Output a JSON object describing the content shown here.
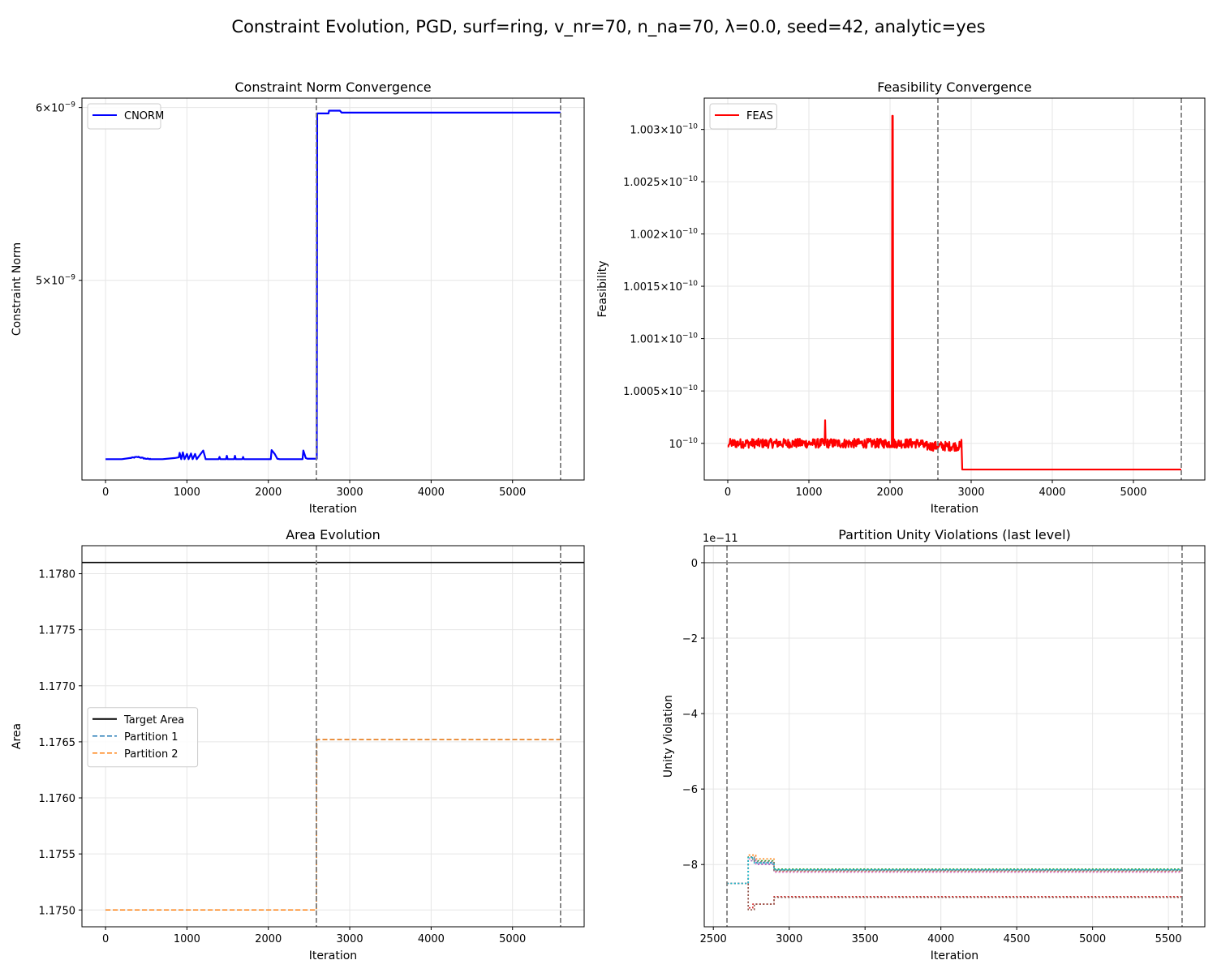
{
  "figure_title": "Constraint Evolution, PGD, surf=ring, v_nr=70, n_na=70, λ=0.0, seed=42, analytic=yes",
  "chart_data": [
    {
      "id": "cnorm",
      "type": "line",
      "title": "Constraint Norm Convergence",
      "xlabel": "Iteration",
      "ylabel": "Constraint Norm",
      "xlim": [
        -290,
        5880
      ],
      "ylim": [
        4.05e-09,
        6.06e-09
      ],
      "yscale": "log",
      "xticks": [
        0,
        1000,
        2000,
        3000,
        4000,
        5000
      ],
      "xtick_labels": [
        "0",
        "1000",
        "2000",
        "3000",
        "4000",
        "5000"
      ],
      "yticks": [
        5e-09,
        6e-09
      ],
      "ytick_labels": [
        {
          "mant": "5",
          "exp": "−9"
        },
        {
          "mant": "6",
          "exp": "−9"
        }
      ],
      "vlines": [
        2590,
        5590
      ],
      "legend": {
        "position": "upper-left",
        "entries": [
          {
            "label": "CNORM",
            "color": "#0000ff",
            "style": "solid"
          }
        ]
      },
      "series": [
        {
          "name": "CNORM",
          "color": "#0000ff",
          "width": 2.2,
          "points": [
            [
              0,
              4.14e-09
            ],
            [
              200,
              4.14e-09
            ],
            [
              300,
              4.145e-09
            ],
            [
              400,
              4.15e-09
            ],
            [
              480,
              4.143e-09
            ],
            [
              550,
              4.14e-09
            ],
            [
              700,
              4.14e-09
            ],
            [
              850,
              4.145e-09
            ],
            [
              900,
              4.148e-09
            ],
            [
              910,
              4.168e-09
            ],
            [
              930,
              4.14e-09
            ],
            [
              950,
              4.17e-09
            ],
            [
              970,
              4.14e-09
            ],
            [
              1000,
              4.163e-09
            ],
            [
              1020,
              4.14e-09
            ],
            [
              1050,
              4.165e-09
            ],
            [
              1070,
              4.14e-09
            ],
            [
              1100,
              4.163e-09
            ],
            [
              1120,
              4.14e-09
            ],
            [
              1200,
              4.178e-09
            ],
            [
              1230,
              4.14e-09
            ],
            [
              1390,
              4.14e-09
            ],
            [
              1400,
              4.15e-09
            ],
            [
              1410,
              4.14e-09
            ],
            [
              1480,
              4.14e-09
            ],
            [
              1490,
              4.155e-09
            ],
            [
              1500,
              4.14e-09
            ],
            [
              1580,
              4.14e-09
            ],
            [
              1590,
              4.155e-09
            ],
            [
              1600,
              4.14e-09
            ],
            [
              1680,
              4.14e-09
            ],
            [
              1690,
              4.15e-09
            ],
            [
              1700,
              4.14e-09
            ],
            [
              2030,
              4.14e-09
            ],
            [
              2040,
              4.18e-09
            ],
            [
              2080,
              4.162e-09
            ],
            [
              2110,
              4.142e-09
            ],
            [
              2140,
              4.14e-09
            ],
            [
              2420,
              4.14e-09
            ],
            [
              2430,
              4.178e-09
            ],
            [
              2460,
              4.145e-09
            ],
            [
              2480,
              4.142e-09
            ],
            [
              2595,
              4.142e-09
            ],
            [
              2600,
              5.963e-09
            ],
            [
              2740,
              5.963e-09
            ],
            [
              2745,
              5.98e-09
            ],
            [
              2880,
              5.98e-09
            ],
            [
              2900,
              5.968e-09
            ],
            [
              5590,
              5.968e-09
            ]
          ]
        }
      ]
    },
    {
      "id": "feas",
      "type": "line",
      "title": "Feasibility Convergence",
      "xlabel": "Iteration",
      "ylabel": "Feasibility",
      "xlim": [
        -290,
        5880
      ],
      "ylim": [
        9.9965e-11,
        1.0033e-10
      ],
      "yscale": "log",
      "xticks": [
        0,
        1000,
        2000,
        3000,
        4000,
        5000
      ],
      "xtick_labels": [
        "0",
        "1000",
        "2000",
        "3000",
        "4000",
        "5000"
      ],
      "yticks": [
        1e-10,
        1.0005e-10,
        1.001e-10,
        1.0015e-10,
        1.002e-10,
        1.0025e-10,
        1.003e-10
      ],
      "ytick_labels": [
        {
          "mant": "",
          "exp": "−10"
        },
        {
          "mant": "1.0005",
          "exp": "−10"
        },
        {
          "mant": "1.001",
          "exp": "−10"
        },
        {
          "mant": "1.0015",
          "exp": "−10"
        },
        {
          "mant": "1.002",
          "exp": "−10"
        },
        {
          "mant": "1.0025",
          "exp": "−10"
        },
        {
          "mant": "1.003",
          "exp": "−10"
        }
      ],
      "vlines": [
        2590,
        5590
      ],
      "legend": {
        "position": "upper-left",
        "entries": [
          {
            "label": "FEAS",
            "color": "#ff0000",
            "style": "solid"
          }
        ]
      },
      "series": [
        {
          "name": "FEAS",
          "color": "#ff0000",
          "width": 2.2,
          "noise_range": [
            0,
            2880
          ],
          "noise_amp": 4.5e-15,
          "base": 1e-10,
          "points": [
            [
              0,
              1e-10
            ],
            [
              1195,
              1e-10
            ],
            [
              1200,
              1.00022e-10
            ],
            [
              1210,
              1e-10
            ],
            [
              2020,
              1e-10
            ],
            [
              2030,
              1.00313e-10
            ],
            [
              2040,
              1e-10
            ],
            [
              2880,
              1e-10
            ],
            [
              2890,
              9.9975e-11
            ],
            [
              5590,
              9.9975e-11
            ]
          ]
        }
      ]
    },
    {
      "id": "area",
      "type": "line",
      "title": "Area Evolution",
      "xlabel": "Iteration",
      "ylabel": "Area",
      "xlim": [
        -290,
        5880
      ],
      "ylim": [
        1.17485,
        1.17825
      ],
      "yscale": "linear",
      "xticks": [
        0,
        1000,
        2000,
        3000,
        4000,
        5000
      ],
      "xtick_labels": [
        "0",
        "1000",
        "2000",
        "3000",
        "4000",
        "5000"
      ],
      "yticks": [
        1.175,
        1.1755,
        1.176,
        1.1765,
        1.177,
        1.1775,
        1.178
      ],
      "ytick_labels": [
        "1.1750",
        "1.1755",
        "1.1760",
        "1.1765",
        "1.1770",
        "1.1775",
        "1.1780"
      ],
      "vlines": [
        2590,
        5590
      ],
      "hline": {
        "y": 1.1781,
        "color": "#000000"
      },
      "legend": {
        "position": "center-left",
        "entries": [
          {
            "label": "Target Area",
            "color": "#000000",
            "style": "solid"
          },
          {
            "label": "Partition 1",
            "color": "#1f77b4",
            "style": "dashed"
          },
          {
            "label": "Partition 2",
            "color": "#ff7f0e",
            "style": "dashed"
          }
        ]
      },
      "series": [
        {
          "name": "Partition 1",
          "color": "#1f77b4",
          "width": 1.5,
          "dashed": true,
          "points": [
            [
              0,
              1.175
            ],
            [
              2590,
              1.175
            ],
            [
              2595,
              1.17652
            ],
            [
              5590,
              1.17652
            ]
          ]
        },
        {
          "name": "Partition 2",
          "color": "#ff7f0e",
          "width": 1.5,
          "dashed": true,
          "points": [
            [
              0,
              1.175
            ],
            [
              2590,
              1.175
            ],
            [
              2595,
              1.17652
            ],
            [
              5590,
              1.17652
            ]
          ]
        }
      ]
    },
    {
      "id": "unity",
      "type": "line",
      "title": "Partition Unity Violations (last level)",
      "xlabel": "Iteration",
      "ylabel": "Unity Violation",
      "offset_label": "1e−11",
      "xlim": [
        2440,
        5740
      ],
      "ylim": [
        -9.65,
        0.45
      ],
      "yscale": "linear",
      "xticks": [
        2500,
        3000,
        3500,
        4000,
        4500,
        5000,
        5500
      ],
      "xtick_labels": [
        "2500",
        "3000",
        "3500",
        "4000",
        "4500",
        "5000",
        "5500"
      ],
      "yticks": [
        -8,
        -6,
        -4,
        -2,
        0
      ],
      "ytick_labels": [
        "−8",
        "−6",
        "−4",
        "−2",
        "0"
      ],
      "vlines": [
        2590,
        5590
      ],
      "hline": {
        "y": 0,
        "color": "#808080"
      },
      "series": [
        {
          "color": "#1f77b4",
          "width": 1.6,
          "dotted": true,
          "points": [
            [
              2590,
              -8.5
            ],
            [
              2730,
              -8.5
            ],
            [
              2730,
              -7.8
            ],
            [
              2770,
              -7.8
            ],
            [
              2770,
              -7.95
            ],
            [
              2900,
              -7.95
            ],
            [
              2900,
              -8.15
            ],
            [
              5590,
              -8.15
            ]
          ]
        },
        {
          "color": "#ff7f0e",
          "width": 1.6,
          "dotted": true,
          "points": [
            [
              2590,
              -8.5
            ],
            [
              2730,
              -8.5
            ],
            [
              2730,
              -7.75
            ],
            [
              2780,
              -7.75
            ],
            [
              2780,
              -7.85
            ],
            [
              2900,
              -7.85
            ],
            [
              2900,
              -8.18
            ],
            [
              5590,
              -8.18
            ]
          ]
        },
        {
          "color": "#2ca02c",
          "width": 1.6,
          "dotted": true,
          "points": [
            [
              2590,
              -8.5
            ],
            [
              2730,
              -8.5
            ],
            [
              2730,
              -7.8
            ],
            [
              2760,
              -7.8
            ],
            [
              2760,
              -7.9
            ],
            [
              2900,
              -7.9
            ],
            [
              2900,
              -8.12
            ],
            [
              5590,
              -8.12
            ]
          ]
        },
        {
          "color": "#d62728",
          "width": 1.6,
          "dotted": true,
          "points": [
            [
              2590,
              -8.5
            ],
            [
              2730,
              -8.5
            ],
            [
              2730,
              -9.15
            ],
            [
              2760,
              -9.15
            ],
            [
              2760,
              -9.05
            ],
            [
              2900,
              -9.05
            ],
            [
              2900,
              -8.85
            ],
            [
              5590,
              -8.85
            ]
          ]
        },
        {
          "color": "#9467bd",
          "width": 1.6,
          "dotted": true,
          "points": [
            [
              2590,
              -8.5
            ],
            [
              2730,
              -8.5
            ],
            [
              2730,
              -7.9
            ],
            [
              2780,
              -7.9
            ],
            [
              2780,
              -8.0
            ],
            [
              2900,
              -8.0
            ],
            [
              2900,
              -8.2
            ],
            [
              5590,
              -8.2
            ]
          ]
        },
        {
          "color": "#8c564b",
          "width": 1.6,
          "dotted": true,
          "points": [
            [
              2590,
              -8.5
            ],
            [
              2730,
              -8.5
            ],
            [
              2730,
              -9.2
            ],
            [
              2770,
              -9.2
            ],
            [
              2770,
              -9.05
            ],
            [
              2900,
              -9.05
            ],
            [
              2900,
              -8.87
            ],
            [
              5590,
              -8.87
            ]
          ]
        },
        {
          "color": "#e377c2",
          "width": 1.6,
          "dotted": true,
          "points": [
            [
              2590,
              -8.5
            ],
            [
              2730,
              -8.5
            ],
            [
              2730,
              -7.85
            ],
            [
              2780,
              -7.85
            ],
            [
              2780,
              -7.98
            ],
            [
              2900,
              -7.98
            ],
            [
              2900,
              -8.2
            ],
            [
              5590,
              -8.2
            ]
          ]
        },
        {
          "color": "#7f7f7f",
          "width": 1.6,
          "dotted": true,
          "points": [
            [
              2590,
              -8.5
            ],
            [
              2730,
              -8.5
            ],
            [
              2730,
              -7.8
            ],
            [
              2770,
              -7.8
            ],
            [
              2770,
              -7.92
            ],
            [
              2900,
              -7.92
            ],
            [
              2900,
              -8.16
            ],
            [
              5590,
              -8.16
            ]
          ]
        },
        {
          "color": "#17becf",
          "width": 1.6,
          "dotted": true,
          "points": [
            [
              2590,
              -8.5
            ],
            [
              2730,
              -8.5
            ],
            [
              2730,
              -7.82
            ],
            [
              2770,
              -7.82
            ],
            [
              2770,
              -7.96
            ],
            [
              2900,
              -7.96
            ],
            [
              2900,
              -8.14
            ],
            [
              5590,
              -8.14
            ]
          ]
        }
      ]
    }
  ]
}
